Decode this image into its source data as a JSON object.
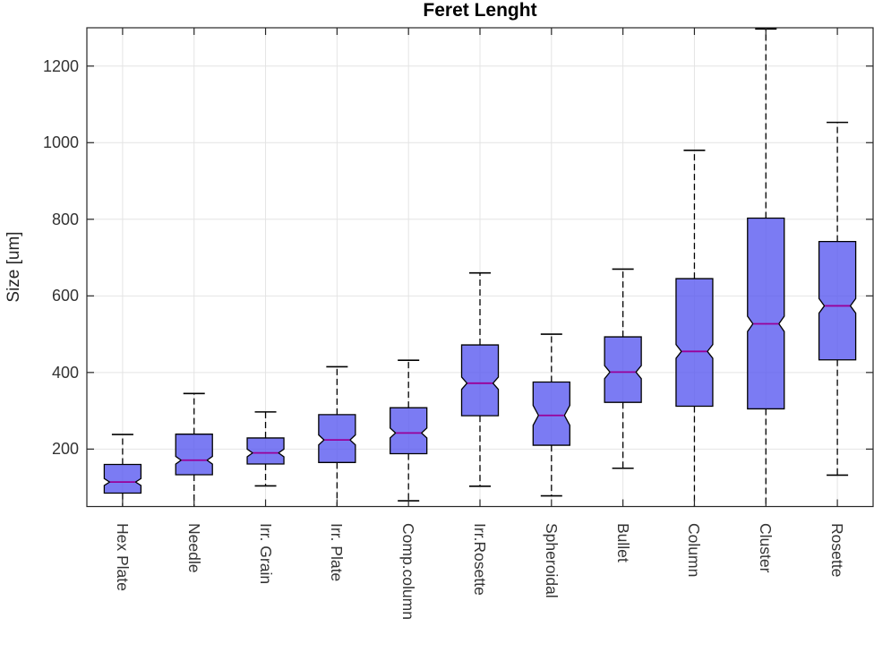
{
  "chart_data": {
    "type": "box",
    "title": "Feret Lenght",
    "ylabel": "Size [um]",
    "xlabel": "",
    "ylim": [
      50,
      1300
    ],
    "yticks": [
      200,
      400,
      600,
      800,
      1000,
      1200
    ],
    "grid": true,
    "notched": true,
    "whisker_style": "dashed",
    "x_tick_rotation": 90,
    "colors": {
      "box_fill": "rgba(90,90,240,0.8)",
      "box_edge": "#000000",
      "median": "#990099",
      "whisker": "#000000",
      "axis": "#262626",
      "grid": "#e4e4e4",
      "text": "#333333",
      "background": "#ffffff"
    },
    "categories": [
      "Hex Plate",
      "Needle",
      "Irr. Grain",
      "Irr. Plate",
      "Comp.column",
      "Irr.Rosette",
      "Spheroidal",
      "Bullet",
      "Column",
      "Cluster",
      "Rosette"
    ],
    "boxes": [
      {
        "label": "Hex Plate",
        "whisker_low": null,
        "q1": 85,
        "median": 114,
        "q3": 160,
        "whisker_high": 238,
        "notch_low": 105,
        "notch_high": 123,
        "clipped_low": true,
        "clipped_high": false
      },
      {
        "label": "Needle",
        "whisker_low": null,
        "q1": 133,
        "median": 171,
        "q3": 239,
        "whisker_high": 345,
        "notch_low": 161,
        "notch_high": 181,
        "clipped_low": true,
        "clipped_high": false
      },
      {
        "label": "Irr. Grain",
        "whisker_low": 104,
        "q1": 161,
        "median": 190,
        "q3": 229,
        "whisker_high": 297,
        "notch_low": 180,
        "notch_high": 200,
        "clipped_low": false,
        "clipped_high": false
      },
      {
        "label": "Irr. Plate",
        "whisker_low": null,
        "q1": 165,
        "median": 224,
        "q3": 290,
        "whisker_high": 415,
        "notch_low": 211,
        "notch_high": 237,
        "clipped_low": true,
        "clipped_high": false
      },
      {
        "label": "Comp.column",
        "whisker_low": 65,
        "q1": 188,
        "median": 242,
        "q3": 308,
        "whisker_high": 432,
        "notch_low": 229,
        "notch_high": 255,
        "clipped_low": false,
        "clipped_high": false
      },
      {
        "label": "Irr.Rosette",
        "whisker_low": 103,
        "q1": 287,
        "median": 372,
        "q3": 472,
        "whisker_high": 660,
        "notch_low": 356,
        "notch_high": 388,
        "clipped_low": false,
        "clipped_high": false
      },
      {
        "label": "Spheroidal",
        "whisker_low": 78,
        "q1": 210,
        "median": 288,
        "q3": 375,
        "whisker_high": 500,
        "notch_low": 262,
        "notch_high": 314,
        "clipped_low": false,
        "clipped_high": false
      },
      {
        "label": "Bullet",
        "whisker_low": 150,
        "q1": 322,
        "median": 401,
        "q3": 493,
        "whisker_high": 670,
        "notch_low": 384,
        "notch_high": 418,
        "clipped_low": false,
        "clipped_high": false
      },
      {
        "label": "Column",
        "whisker_low": null,
        "q1": 312,
        "median": 455,
        "q3": 645,
        "whisker_high": 980,
        "notch_low": 437,
        "notch_high": 473,
        "clipped_low": true,
        "clipped_high": false
      },
      {
        "label": "Cluster",
        "whisker_low": null,
        "q1": 305,
        "median": 527,
        "q3": 803,
        "whisker_high": 1297,
        "notch_low": 507,
        "notch_high": 547,
        "clipped_low": true,
        "clipped_high": false
      },
      {
        "label": "Rosette",
        "whisker_low": 132,
        "q1": 433,
        "median": 574,
        "q3": 742,
        "whisker_high": 1053,
        "notch_low": 555,
        "notch_high": 593,
        "clipped_low": false,
        "clipped_high": false
      }
    ]
  }
}
